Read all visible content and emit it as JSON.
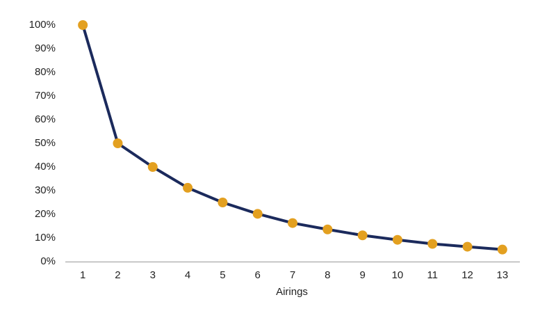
{
  "chart_data": {
    "type": "line",
    "x_label": "Airings",
    "x": [
      1,
      2,
      3,
      4,
      5,
      6,
      7,
      8,
      9,
      10,
      11,
      12,
      13
    ],
    "series": [
      {
        "color": "#1b2a5c",
        "marker_color": "#e3a020",
        "values": [
          100,
          50,
          40,
          31.2,
          25,
          20.2,
          16.3,
          13.6,
          11.1,
          9.2,
          7.5,
          6.3,
          5.1
        ]
      }
    ],
    "xlim": [
      0.5,
      13.5
    ],
    "xticks": [
      1,
      2,
      3,
      4,
      5,
      6,
      7,
      8,
      9,
      10,
      11,
      12,
      13
    ],
    "ylim": [
      0,
      100
    ],
    "yticks": [
      {
        "value": 0,
        "label": "0%"
      },
      {
        "value": 10,
        "label": "10%"
      },
      {
        "value": 20,
        "label": "20%"
      },
      {
        "value": 30,
        "label": "30%"
      },
      {
        "value": 40,
        "label": "40%"
      },
      {
        "value": 50,
        "label": "50%"
      },
      {
        "value": 60,
        "label": "60%"
      },
      {
        "value": 70,
        "label": "70%"
      },
      {
        "value": 80,
        "label": "80%"
      },
      {
        "value": 90,
        "label": "90%"
      },
      {
        "value": 100,
        "label": "100%"
      }
    ],
    "grid": false
  }
}
